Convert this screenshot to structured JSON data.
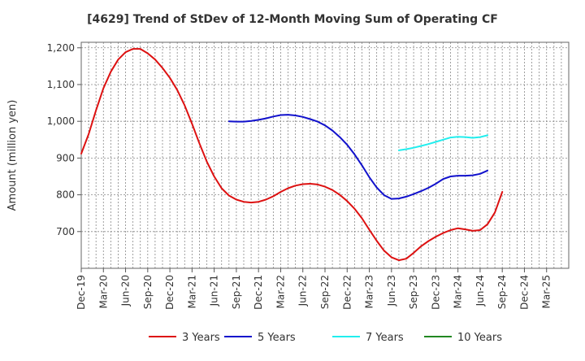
{
  "chart_data": {
    "type": "line",
    "title": "[4629]  Trend of StDev of 12-Month Moving Sum of Operating CF",
    "ylabel": "Amount (million yen)",
    "xlabel": "",
    "ylim": [
      600,
      1215
    ],
    "yticks": [
      700,
      800,
      900,
      1000,
      1100,
      1200
    ],
    "ytick_labels": [
      "700",
      "800",
      "900",
      "1,000",
      "1,100",
      "1,200"
    ],
    "x_categories": [
      "Dec-19",
      "Mar-20",
      "Jun-20",
      "Sep-20",
      "Dec-20",
      "Mar-21",
      "Jun-21",
      "Sep-21",
      "Dec-21",
      "Mar-22",
      "Jun-22",
      "Sep-22",
      "Dec-22",
      "Mar-23",
      "Jun-23",
      "Sep-23",
      "Dec-23",
      "Mar-24",
      "Jun-24",
      "Sep-24",
      "Dec-24",
      "Mar-25"
    ],
    "grid": true,
    "legend_position": "bottom",
    "series": [
      {
        "name": "3 Years",
        "color": "#dd1111",
        "points": [
          [
            0,
            912
          ],
          [
            0.333,
            965
          ],
          [
            0.667,
            1030
          ],
          [
            1,
            1090
          ],
          [
            1.333,
            1135
          ],
          [
            1.667,
            1168
          ],
          [
            2,
            1188
          ],
          [
            2.333,
            1197
          ],
          [
            2.667,
            1197
          ],
          [
            3,
            1185
          ],
          [
            3.333,
            1168
          ],
          [
            3.667,
            1145
          ],
          [
            4,
            1118
          ],
          [
            4.333,
            1085
          ],
          [
            4.667,
            1043
          ],
          [
            5,
            993
          ],
          [
            5.333,
            940
          ],
          [
            5.667,
            890
          ],
          [
            6,
            850
          ],
          [
            6.333,
            818
          ],
          [
            6.667,
            798
          ],
          [
            7,
            787
          ],
          [
            7.333,
            781
          ],
          [
            7.667,
            779
          ],
          [
            8,
            781
          ],
          [
            8.333,
            787
          ],
          [
            8.667,
            796
          ],
          [
            9,
            808
          ],
          [
            9.333,
            818
          ],
          [
            9.667,
            825
          ],
          [
            10,
            829
          ],
          [
            10.333,
            830
          ],
          [
            10.667,
            828
          ],
          [
            11,
            822
          ],
          [
            11.333,
            813
          ],
          [
            11.667,
            800
          ],
          [
            12,
            783
          ],
          [
            12.333,
            762
          ],
          [
            12.667,
            736
          ],
          [
            13,
            705
          ],
          [
            13.333,
            675
          ],
          [
            13.667,
            648
          ],
          [
            14,
            630
          ],
          [
            14.333,
            622
          ],
          [
            14.667,
            626
          ],
          [
            15,
            642
          ],
          [
            15.333,
            660
          ],
          [
            15.667,
            674
          ],
          [
            16,
            686
          ],
          [
            16.333,
            696
          ],
          [
            16.667,
            704
          ],
          [
            17,
            709
          ],
          [
            17.333,
            706
          ],
          [
            17.667,
            702
          ],
          [
            18,
            704
          ],
          [
            18.333,
            720
          ],
          [
            18.667,
            752
          ],
          [
            19,
            808
          ]
        ]
      },
      {
        "name": "5 Years",
        "color": "#1111cc",
        "points": [
          [
            6.667,
            1000
          ],
          [
            7,
            999
          ],
          [
            7.333,
            999
          ],
          [
            7.667,
            1001
          ],
          [
            8,
            1004
          ],
          [
            8.333,
            1008
          ],
          [
            8.667,
            1013
          ],
          [
            9,
            1017
          ],
          [
            9.333,
            1018
          ],
          [
            9.667,
            1016
          ],
          [
            10,
            1012
          ],
          [
            10.333,
            1006
          ],
          [
            10.667,
            999
          ],
          [
            11,
            989
          ],
          [
            11.333,
            975
          ],
          [
            11.667,
            957
          ],
          [
            12,
            936
          ],
          [
            12.333,
            910
          ],
          [
            12.667,
            880
          ],
          [
            13,
            848
          ],
          [
            13.333,
            820
          ],
          [
            13.667,
            799
          ],
          [
            14,
            789
          ],
          [
            14.333,
            790
          ],
          [
            14.667,
            795
          ],
          [
            15,
            802
          ],
          [
            15.333,
            810
          ],
          [
            15.667,
            819
          ],
          [
            16,
            830
          ],
          [
            16.333,
            843
          ],
          [
            16.667,
            850
          ],
          [
            17,
            852
          ],
          [
            17.333,
            852
          ],
          [
            17.667,
            853
          ],
          [
            18,
            857
          ],
          [
            18.333,
            866
          ]
        ]
      },
      {
        "name": "7 Years",
        "color": "#22eeee",
        "points": [
          [
            14.333,
            921
          ],
          [
            14.667,
            924
          ],
          [
            15,
            928
          ],
          [
            15.333,
            933
          ],
          [
            15.667,
            938
          ],
          [
            16,
            944
          ],
          [
            16.333,
            950
          ],
          [
            16.667,
            956
          ],
          [
            17,
            958
          ],
          [
            17.333,
            957
          ],
          [
            17.667,
            955
          ],
          [
            18,
            957
          ],
          [
            18.333,
            962
          ]
        ]
      },
      {
        "name": "10 Years",
        "color": "#228822",
        "points": []
      }
    ]
  }
}
